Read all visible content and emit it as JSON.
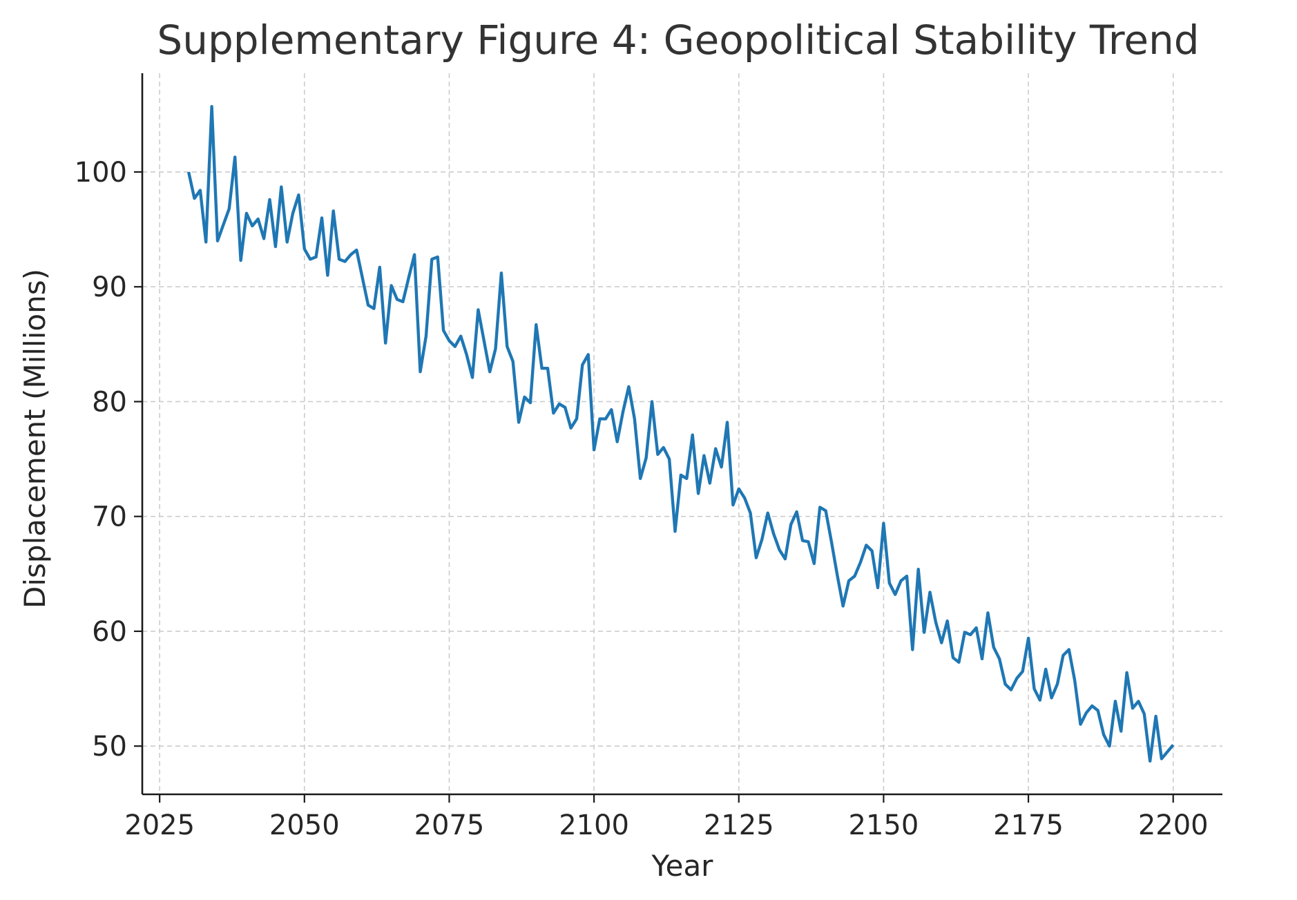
{
  "chart_data": {
    "type": "line",
    "title": "Supplementary Figure 4: Geopolitical Stability Trend",
    "xlabel": "Year",
    "ylabel": "Displacement (Millions)",
    "xlim": [
      2022,
      2208.5
    ],
    "ylim": [
      45.8,
      108.6
    ],
    "xticks": [
      2025,
      2050,
      2075,
      2100,
      2125,
      2150,
      2175,
      2200
    ],
    "yticks": [
      50,
      60,
      70,
      80,
      90,
      100
    ],
    "grid": true,
    "legend": "none",
    "color": "#1f77b4",
    "x_start": 2030,
    "x_step": 1,
    "series": [
      {
        "values": [
          100.0,
          97.7,
          98.4,
          93.9,
          105.7,
          94.0,
          95.4,
          96.8,
          101.3,
          92.3,
          96.4,
          95.3,
          95.9,
          94.2,
          97.6,
          93.5,
          98.7,
          93.9,
          96.4,
          98.0,
          93.3,
          92.4,
          92.6,
          96.0,
          91.0,
          96.6,
          92.4,
          92.2,
          92.8,
          93.2,
          90.8,
          88.4,
          88.1,
          91.7,
          85.1,
          90.1,
          88.9,
          88.7,
          90.8,
          92.8,
          82.6,
          85.7,
          92.4,
          92.6,
          86.2,
          85.3,
          84.8,
          85.7,
          84.1,
          82.1,
          88.0,
          85.3,
          82.6,
          84.6,
          91.2,
          84.8,
          83.5,
          78.2,
          80.4,
          79.9,
          86.7,
          82.9,
          82.9,
          79.0,
          79.8,
          79.5,
          77.7,
          78.5,
          83.2,
          84.1,
          75.8,
          78.5,
          78.5,
          79.3,
          76.5,
          79.1,
          81.3,
          78.5,
          73.3,
          75.1,
          80.0,
          75.4,
          76.0,
          75.0,
          68.7,
          73.6,
          73.3,
          77.1,
          72.0,
          75.3,
          72.9,
          75.9,
          74.3,
          78.2,
          71.0,
          72.4,
          71.6,
          70.3,
          66.4,
          68.0,
          70.3,
          68.5,
          67.1,
          66.3,
          69.3,
          70.4,
          67.9,
          67.8,
          65.9,
          70.8,
          70.5,
          67.8,
          64.9,
          62.2,
          64.4,
          64.8,
          66.0,
          67.5,
          67.0,
          63.8,
          69.4,
          64.2,
          63.2,
          64.4,
          64.8,
          58.4,
          65.4,
          59.9,
          63.4,
          60.8,
          59.0,
          60.9,
          57.7,
          57.3,
          59.9,
          59.7,
          60.3,
          57.6,
          61.6,
          58.6,
          57.6,
          55.4,
          54.9,
          55.9,
          56.5,
          59.4,
          55.0,
          54.0,
          56.7,
          54.2,
          55.4,
          57.9,
          58.4,
          55.7,
          51.9,
          52.9,
          53.5,
          53.1,
          51.0,
          50.0,
          53.9,
          51.3,
          56.4,
          53.3,
          53.9,
          52.8,
          48.7,
          52.6,
          48.9,
          49.5,
          50.1
        ]
      }
    ]
  }
}
